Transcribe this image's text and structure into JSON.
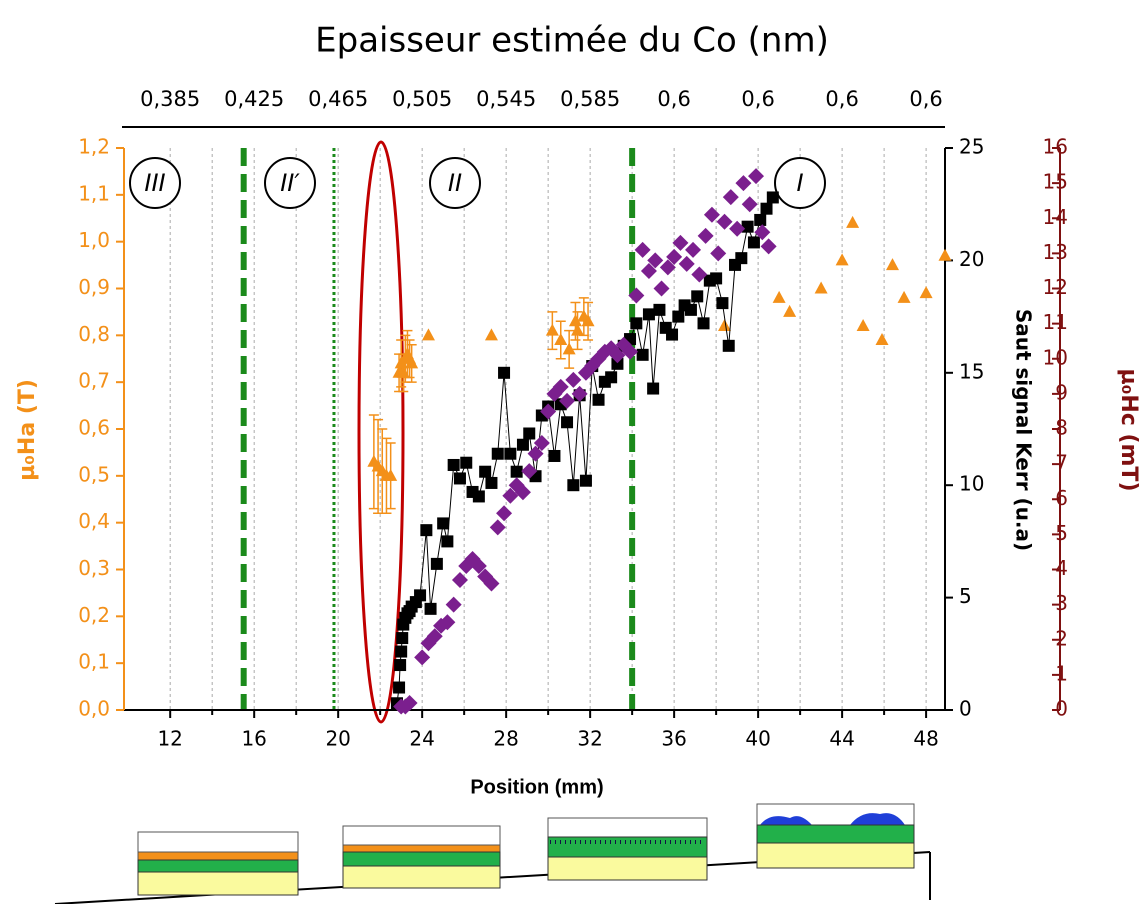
{
  "chart_data": {
    "type": "scatter",
    "title": "Epaisseur estimée du Co (nm)",
    "top_labels": [
      "0,385",
      "0,425",
      "0,465",
      "0,505",
      "0,545",
      "0,585",
      "0,6",
      "0,6",
      "0,6",
      "0,6"
    ],
    "xlabel": "Position (mm)",
    "xlim": [
      9.8,
      48.9
    ],
    "xticks": [
      12,
      16,
      20,
      24,
      28,
      32,
      36,
      40,
      44,
      48
    ],
    "xminorticks": [
      14,
      18,
      22,
      26,
      30,
      34,
      38,
      42,
      46
    ],
    "grid": true,
    "ylabel": "µ₀Ha (T)",
    "y_color": "#f39019",
    "ylim": [
      0,
      1.2
    ],
    "yticks": [
      {
        "value": 0,
        "label": "0,0"
      },
      {
        "value": 0.1,
        "label": "0,1"
      },
      {
        "value": 0.2,
        "label": "0,2"
      },
      {
        "value": 0.3,
        "label": "0,3"
      },
      {
        "value": 0.4,
        "label": "0,4"
      },
      {
        "value": 0.5,
        "label": "0,5"
      },
      {
        "value": 0.6,
        "label": "0,6"
      },
      {
        "value": 0.7,
        "label": "0,7"
      },
      {
        "value": 0.8,
        "label": "0,8"
      },
      {
        "value": 0.9,
        "label": "0,9"
      },
      {
        "value": 1.0,
        "label": "1,0"
      },
      {
        "value": 1.1,
        "label": "1,1"
      },
      {
        "value": 1.2,
        "label": "1,2"
      }
    ],
    "y2label": "Saut signal Kerr (u.a)",
    "y2_color": "#000000",
    "y2lim": [
      0,
      25
    ],
    "y2ticks": [
      0,
      5,
      10,
      15,
      20,
      25
    ],
    "y3label": "µ₀Hc (mT)",
    "y3_color": "#7f1010",
    "y3lim": [
      0,
      16
    ],
    "y3ticks": [
      0,
      1,
      2,
      3,
      4,
      5,
      6,
      7,
      8,
      9,
      10,
      11,
      12,
      13,
      14,
      15,
      16
    ],
    "vlines": [
      {
        "x": 15.5,
        "style": "dashed"
      },
      {
        "x": 19.8,
        "style": "dotted"
      },
      {
        "x": 34.0,
        "style": "dashed"
      }
    ],
    "vline_color": "#1b8a1b",
    "regions": [
      "III",
      "II′",
      "II",
      "I"
    ],
    "series": [
      {
        "axis": "y",
        "marker": "triangle",
        "color": "#f39019",
        "x": [
          21.7,
          21.9,
          22.1,
          22.3,
          22.5,
          22.9,
          23.0,
          23.1,
          23.2,
          23.3,
          23.4,
          23.5,
          24.3,
          27.3,
          30.2,
          30.6,
          31.0,
          31.3,
          31.4,
          31.7,
          31.9,
          38.4,
          41.0,
          41.5,
          43.0,
          44.0,
          44.5,
          45.0,
          45.9,
          46.4,
          46.95,
          48.0,
          48.9
        ],
        "values": [
          0.53,
          0.52,
          0.51,
          0.5,
          0.5,
          0.72,
          0.74,
          0.72,
          0.75,
          0.76,
          0.75,
          0.74,
          0.8,
          0.8,
          0.81,
          0.79,
          0.77,
          0.83,
          0.81,
          0.84,
          0.83,
          0.82,
          0.88,
          0.85,
          0.9,
          0.96,
          1.04,
          0.82,
          0.79,
          0.95,
          0.88,
          0.89,
          0.97
        ],
        "errors": [
          0.1,
          0.1,
          0.09,
          0.08,
          0.07,
          0.04,
          0.05,
          0.04,
          0.05,
          0.05,
          0.04,
          0.04,
          null,
          null,
          0.04,
          0.04,
          0.04,
          0.04,
          0.04,
          0.04,
          0.04,
          null,
          null,
          null,
          null,
          null,
          null,
          null,
          null,
          null,
          null,
          null,
          null
        ]
      },
      {
        "axis": "y2",
        "marker": "square",
        "color": "#000000",
        "line": true,
        "x": [
          22.8,
          22.9,
          22.95,
          23.0,
          23.05,
          23.1,
          23.2,
          23.3,
          23.4,
          23.5,
          23.7,
          23.9,
          24.2,
          24.4,
          24.7,
          25.0,
          25.2,
          25.5,
          25.8,
          26.1,
          26.4,
          26.7,
          27.0,
          27.3,
          27.6,
          27.9,
          28.2,
          28.5,
          28.8,
          29.1,
          29.4,
          29.7,
          30.0,
          30.3,
          30.6,
          30.9,
          31.2,
          31.5,
          31.8,
          32.1,
          32.4,
          32.7,
          33.0,
          33.3,
          33.6,
          33.9,
          34.2,
          34.5,
          34.8,
          35.0,
          35.3,
          35.6,
          35.9,
          36.2,
          36.5,
          36.8,
          37.1,
          37.4,
          37.7,
          38.0,
          38.3,
          38.6,
          38.9,
          39.2,
          39.5,
          39.8,
          40.1,
          40.4,
          40.7
        ],
        "values": [
          0.3,
          1.0,
          2.0,
          2.6,
          3.2,
          3.8,
          4.1,
          4.3,
          4.4,
          4.6,
          4.8,
          5.1,
          8.0,
          4.5,
          6.5,
          8.3,
          7.5,
          10.9,
          10.3,
          11.0,
          9.7,
          9.5,
          10.6,
          10.1,
          11.4,
          15.0,
          11.4,
          10.6,
          11.8,
          12.3,
          10.4,
          13.1,
          13.5,
          11.3,
          13.6,
          12.8,
          10.0,
          14.0,
          10.2,
          15.3,
          13.8,
          14.6,
          14.8,
          15.4,
          16.2,
          16.5,
          17.2,
          15.8,
          17.6,
          14.3,
          17.8,
          17.0,
          16.7,
          17.5,
          18.0,
          17.8,
          18.4,
          17.2,
          19.1,
          19.2,
          18.1,
          16.2,
          19.8,
          20.1,
          21.5,
          20.8,
          21.8,
          22.3,
          22.8
        ]
      },
      {
        "axis": "y3",
        "marker": "diamond",
        "color": "#7b1f8e",
        "x": [
          23.0,
          23.2,
          23.4,
          24.0,
          24.3,
          24.6,
          24.9,
          25.2,
          25.5,
          25.8,
          26.1,
          26.4,
          26.7,
          27.0,
          27.3,
          27.6,
          27.9,
          28.2,
          28.5,
          28.8,
          29.1,
          29.4,
          29.7,
          30.0,
          30.3,
          30.6,
          30.9,
          31.2,
          31.5,
          31.8,
          32.1,
          32.4,
          32.7,
          33.0,
          33.3,
          33.6,
          33.9,
          34.2,
          34.5,
          34.8,
          35.1,
          35.4,
          35.7,
          36.0,
          36.3,
          36.6,
          36.9,
          37.2,
          37.5,
          37.8,
          38.1,
          38.4,
          38.7,
          39.0,
          39.3,
          39.6,
          39.9,
          40.2,
          40.5
        ],
        "values": [
          0.1,
          0.1,
          0.2,
          1.5,
          1.9,
          2.1,
          2.4,
          2.5,
          3.0,
          3.7,
          4.1,
          4.3,
          4.1,
          3.8,
          3.6,
          5.2,
          5.6,
          6.1,
          6.4,
          6.2,
          6.8,
          7.3,
          7.6,
          8.5,
          9.0,
          9.2,
          8.8,
          9.4,
          9.0,
          9.6,
          9.8,
          10.0,
          10.2,
          10.3,
          10.1,
          10.4,
          10.2,
          11.8,
          13.1,
          12.5,
          12.8,
          12.0,
          12.6,
          12.9,
          13.3,
          12.7,
          13.1,
          12.4,
          13.5,
          14.1,
          13.0,
          13.9,
          14.6,
          13.7,
          15.0,
          14.4,
          15.2,
          13.6,
          13.2
        ]
      }
    ]
  }
}
